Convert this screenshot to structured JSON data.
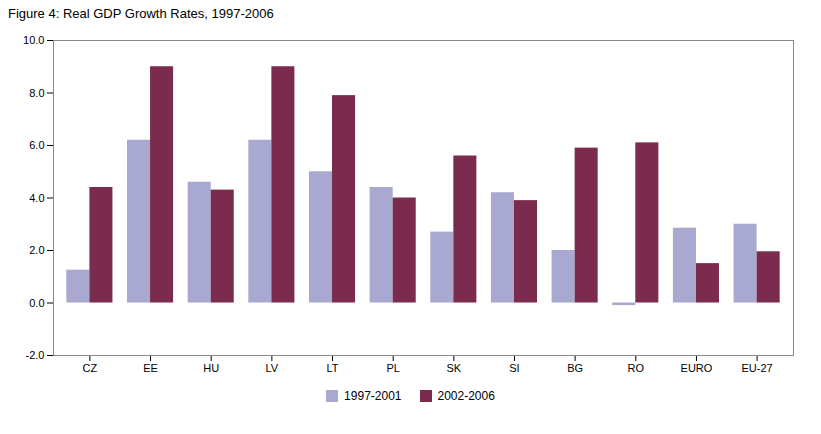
{
  "chart_data": {
    "type": "bar",
    "title": "Figure 4: Real GDP Growth Rates, 1997-2006",
    "categories": [
      "CZ",
      "EE",
      "HU",
      "LV",
      "LT",
      "PL",
      "SK",
      "SI",
      "BG",
      "RO",
      "EURO",
      "EU-27"
    ],
    "series": [
      {
        "name": "1997-2001",
        "color": "#a8a8d0",
        "values": [
          1.25,
          6.2,
          4.6,
          6.2,
          5.0,
          4.4,
          2.7,
          4.2,
          2.0,
          -0.1,
          2.85,
          3.0
        ]
      },
      {
        "name": "2002-2006",
        "color": "#7b2b4e",
        "values": [
          4.4,
          9.0,
          4.3,
          9.0,
          7.9,
          4.0,
          5.6,
          3.9,
          5.9,
          6.1,
          1.5,
          1.95
        ]
      }
    ],
    "ylim": [
      -2.0,
      10.0
    ],
    "yticks": [
      {
        "value": -2.0,
        "label": "-2.0"
      },
      {
        "value": 0.0,
        "label": "0.0"
      },
      {
        "value": 2.0,
        "label": "2.0"
      },
      {
        "value": 4.0,
        "label": "4.0"
      },
      {
        "value": 6.0,
        "label": "6.0"
      },
      {
        "value": 8.0,
        "label": "8.0"
      },
      {
        "value": 10.0,
        "label": "10.0"
      }
    ],
    "grid": false,
    "legend": "bottom"
  }
}
